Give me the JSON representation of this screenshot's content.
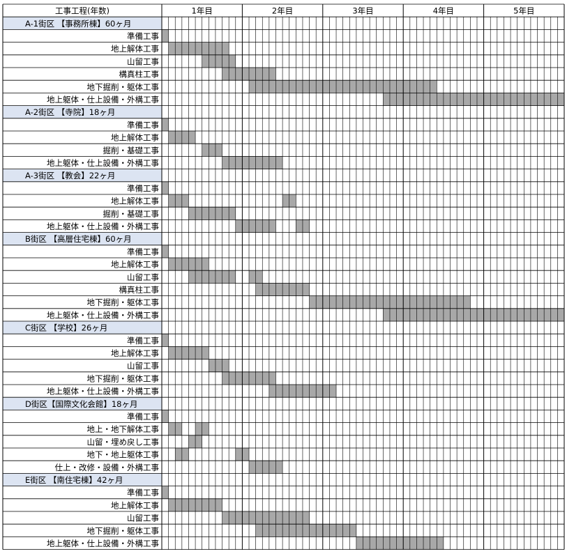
{
  "header_label": "工事工程(年数)",
  "years": [
    "1年目",
    "2年目",
    "3年目",
    "4年目",
    "5年目"
  ],
  "colors": {
    "bar": "#a8a8a8",
    "section_bg": "#dce4f2",
    "grid": "#000000",
    "background": "#ffffff"
  },
  "chart_data": {
    "type": "gantt",
    "time_unit": "month",
    "total_months": 60,
    "sections": [
      {
        "title": "A-1街区 【事務所棟】60ヶ月",
        "tasks": [
          {
            "label": "準備工事",
            "bars": [
              [
                0,
                1
              ]
            ]
          },
          {
            "label": "地上解体工事",
            "bars": [
              [
                1,
                10
              ]
            ]
          },
          {
            "label": "山留工事",
            "bars": [
              [
                6,
                11
              ]
            ]
          },
          {
            "label": "構真柱工事",
            "bars": [
              [
                9,
                17
              ]
            ]
          },
          {
            "label": "地下掘削・躯体工事",
            "bars": [
              [
                13,
                41
              ]
            ]
          },
          {
            "label": "地上躯体・仕上設備・外構工事",
            "bars": [
              [
                33,
                60
              ]
            ]
          }
        ]
      },
      {
        "title": "A-2街区 【寺院】18ヶ月",
        "tasks": [
          {
            "label": "準備工事",
            "bars": [
              [
                0,
                1
              ]
            ]
          },
          {
            "label": "地上解体工事",
            "bars": [
              [
                1,
                5
              ]
            ]
          },
          {
            "label": "掘削・基礎工事",
            "bars": [
              [
                6,
                9
              ]
            ]
          },
          {
            "label": "地上躯体・仕上設備・外構工事",
            "bars": [
              [
                9,
                18
              ]
            ]
          }
        ]
      },
      {
        "title": "A-3街区 【教会】22ヶ月",
        "tasks": [
          {
            "label": "準備工事",
            "bars": [
              [
                0,
                1
              ]
            ]
          },
          {
            "label": "地上解体工事",
            "bars": [
              [
                1,
                4
              ],
              [
                18,
                20
              ]
            ]
          },
          {
            "label": "掘削・基礎工事",
            "bars": [
              [
                4,
                11
              ]
            ]
          },
          {
            "label": "地上躯体・仕上設備・外構工事",
            "bars": [
              [
                11,
                17
              ],
              [
                20,
                22
              ]
            ]
          }
        ]
      },
      {
        "title": "B街区 【高層住宅棟】60ヶ月",
        "tasks": [
          {
            "label": "準備工事",
            "bars": [
              [
                0,
                1
              ]
            ]
          },
          {
            "label": "地上解体工事",
            "bars": [
              [
                1,
                7
              ]
            ]
          },
          {
            "label": "山留工事",
            "bars": [
              [
                4,
                11
              ],
              [
                13,
                15
              ]
            ]
          },
          {
            "label": "構真柱工事",
            "bars": [
              [
                14,
                22
              ]
            ]
          },
          {
            "label": "地下掘削・躯体工事",
            "bars": [
              [
                22,
                46
              ]
            ]
          },
          {
            "label": "地上躯体・仕上設備・外構工事",
            "bars": [
              [
                33,
                60
              ]
            ]
          }
        ]
      },
      {
        "title": "C街区 【学校】26ヶ月",
        "tasks": [
          {
            "label": "準備工事",
            "bars": [
              [
                0,
                1
              ]
            ]
          },
          {
            "label": "地上解体工事",
            "bars": [
              [
                1,
                7
              ]
            ]
          },
          {
            "label": "山留工事",
            "bars": [
              [
                7,
                10
              ]
            ]
          },
          {
            "label": "地下掘削・躯体工事",
            "bars": [
              [
                9,
                17
              ]
            ]
          },
          {
            "label": "地上躯体・仕上設備・外構工事",
            "bars": [
              [
                16,
                26
              ]
            ]
          }
        ]
      },
      {
        "title": "D街区【国際文化会館】18ヶ月",
        "tasks": [
          {
            "label": "準備工事",
            "bars": [
              [
                0,
                1
              ]
            ]
          },
          {
            "label": "地上・地下解体工事",
            "bars": [
              [
                1,
                3
              ],
              [
                5,
                7
              ]
            ]
          },
          {
            "label": "山留・埋め戻し工事",
            "bars": [
              [
                4,
                6
              ]
            ]
          },
          {
            "label": "地下・地上躯体工事",
            "bars": [
              [
                2,
                4
              ],
              [
                11,
                13
              ]
            ]
          },
          {
            "label": "仕上・改修・設備・外構工事",
            "bars": [
              [
                13,
                18
              ]
            ]
          }
        ]
      },
      {
        "title": "E街区 【南住宅棟】42ヶ月",
        "tasks": [
          {
            "label": "準備工事",
            "bars": [
              [
                0,
                1
              ]
            ]
          },
          {
            "label": "地上解体工事",
            "bars": [
              [
                1,
                9
              ]
            ]
          },
          {
            "label": "山留工事",
            "bars": [
              [
                9,
                22
              ]
            ]
          },
          {
            "label": "地下掘削・躯体工事",
            "bars": [
              [
                14,
                29
              ]
            ]
          },
          {
            "label": "地上躯体・仕上設備・外構工事",
            "bars": [
              [
                29,
                42
              ]
            ]
          }
        ]
      }
    ]
  }
}
